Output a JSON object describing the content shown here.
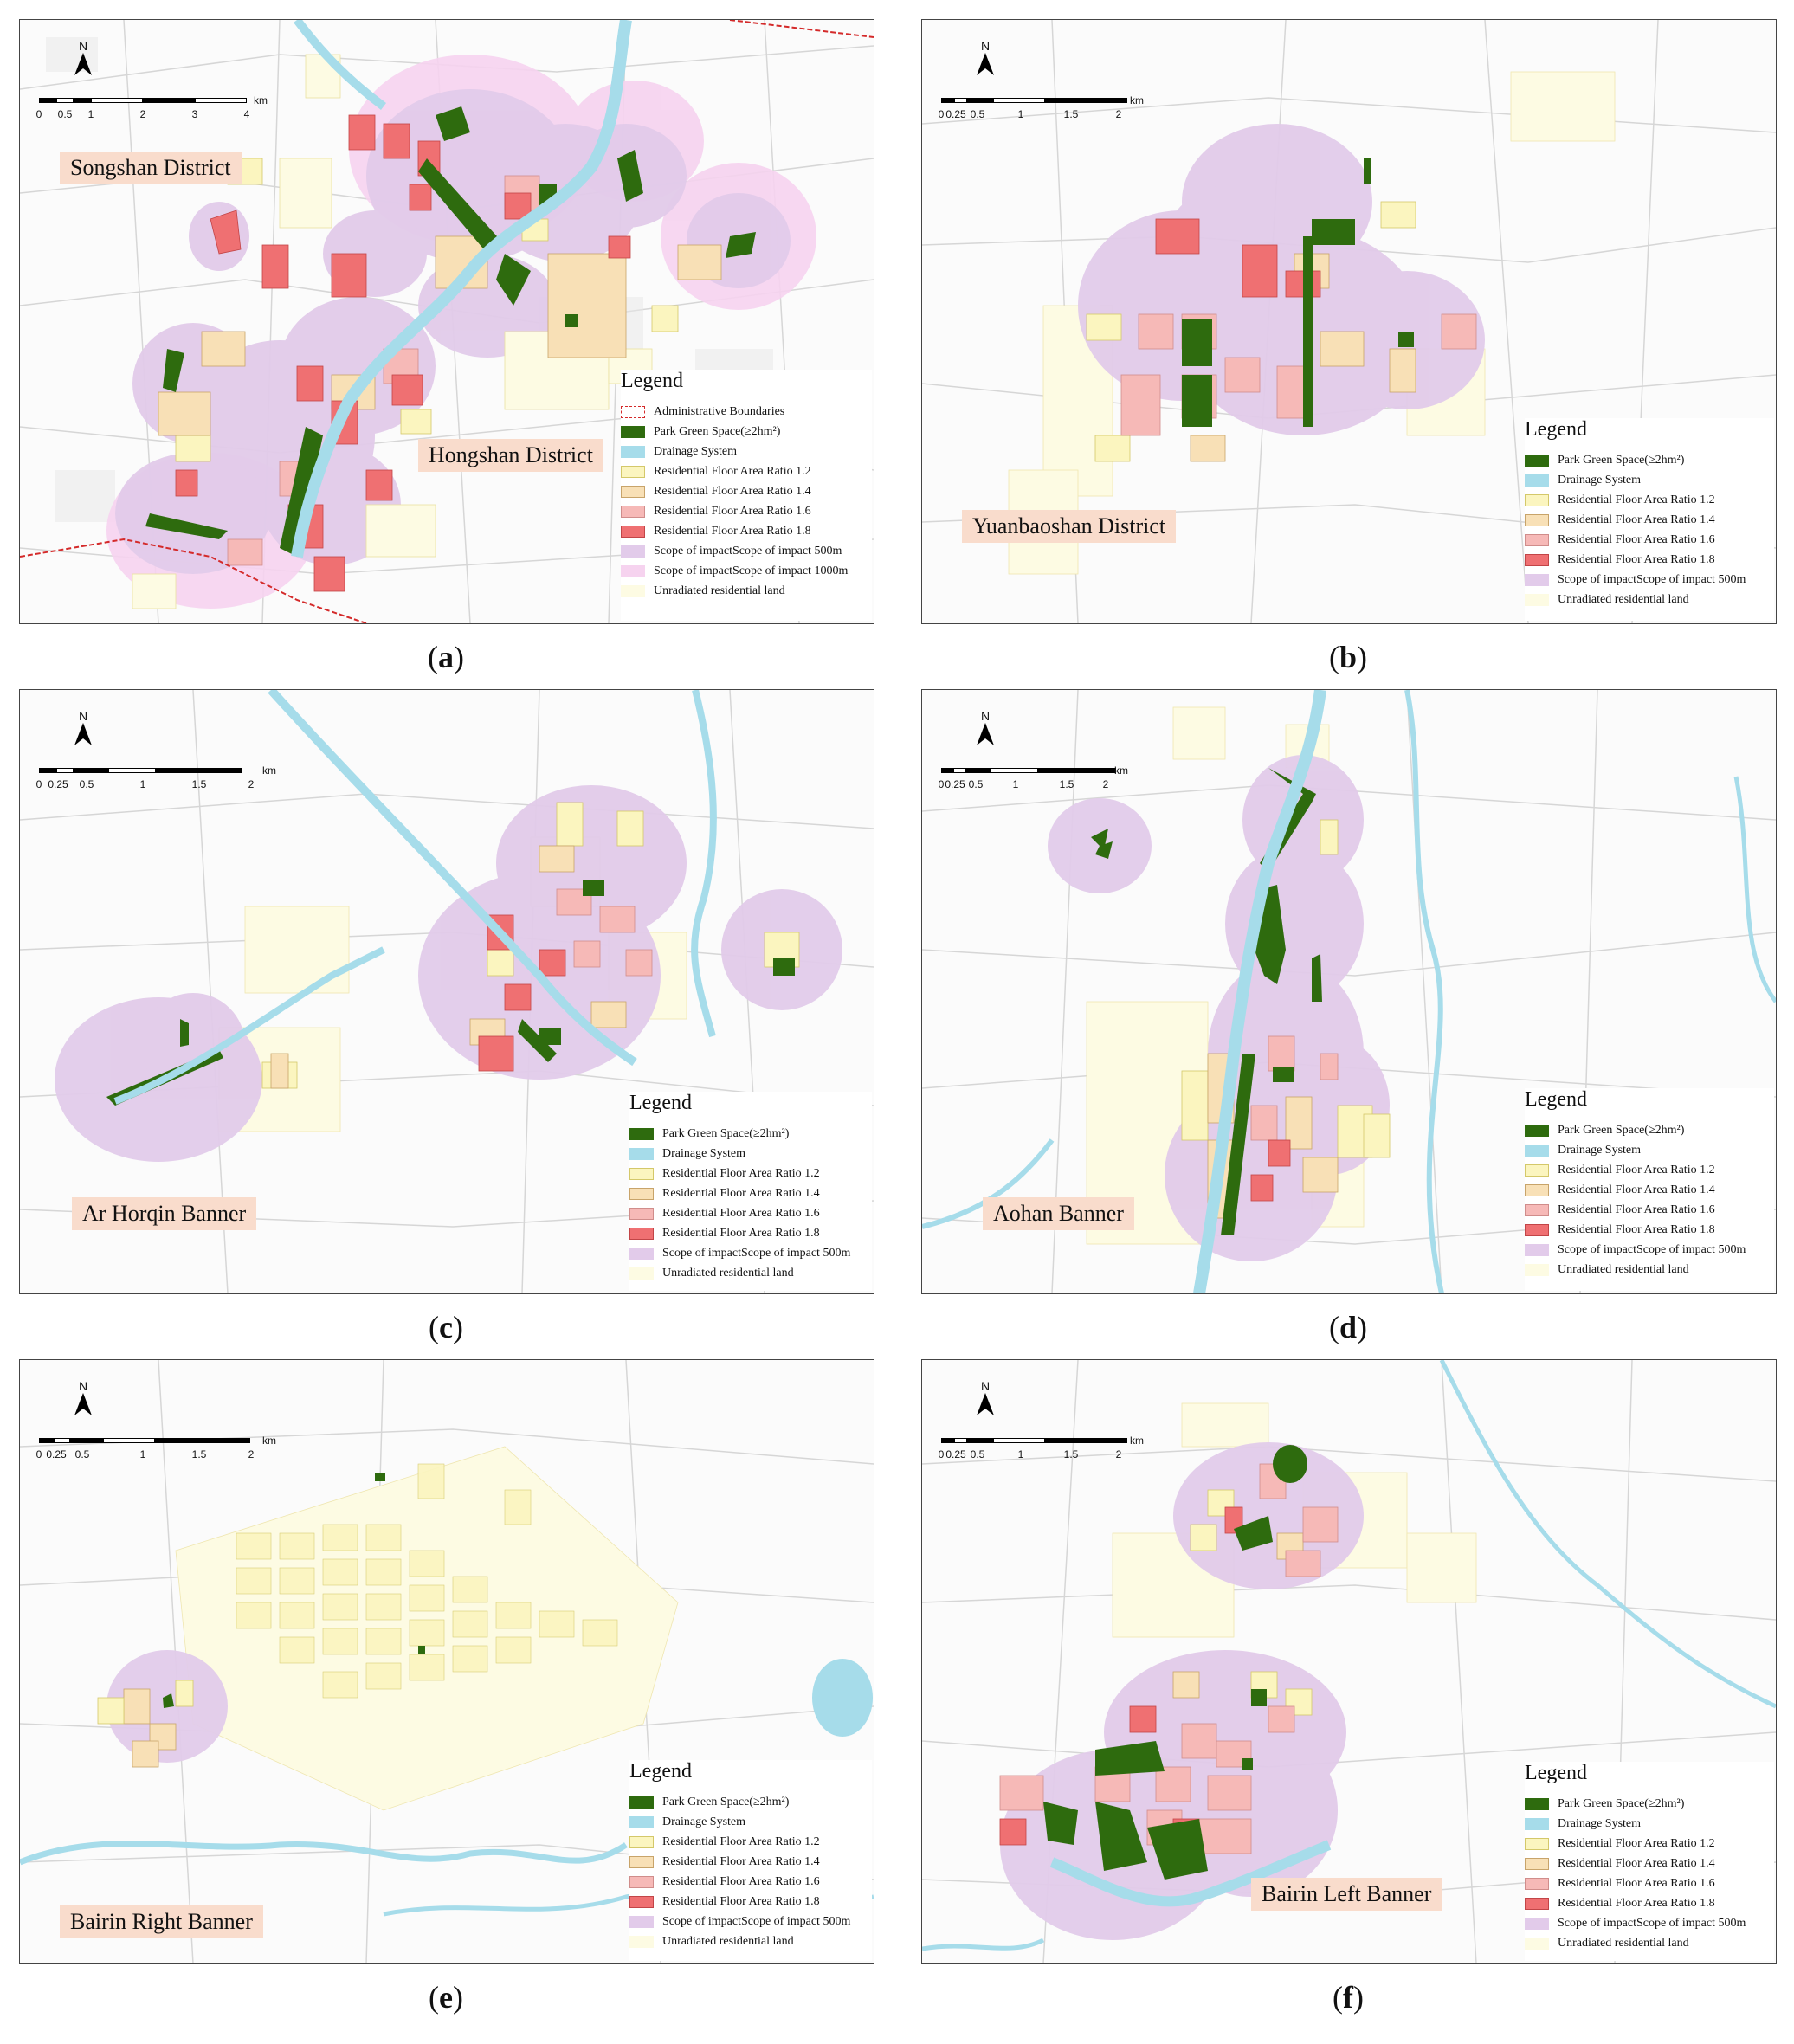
{
  "colors": {
    "park_green": "#2e6b0e",
    "drainage": "#a6dcea",
    "far_12": "#fbf5bf",
    "far_14": "#f8e0b6",
    "far_16": "#f6b9b7",
    "far_18": "#ef7072",
    "impact_500": "#e2cbea",
    "impact_1000": "#f6d3ef",
    "unradiated": "#fdfbe3",
    "admin_boundary": "#d42a2a",
    "district_label_bg": "#f9dccc"
  },
  "north_label": "N",
  "legend_items": {
    "admin": "Administrative Boundaries",
    "park": "Park Green Space(≥2hm²)",
    "drain": "Drainage System",
    "far12": "Residential Floor Area Ratio 1.2",
    "far14": "Residential Floor Area Ratio 1.4",
    "far16": "Residential Floor Area Ratio 1.6",
    "far18": "Residential Floor Area Ratio 1.8",
    "imp500": "Scope of impactScope of impact 500m",
    "imp1000": "Scope of impactScope of impact 1000m",
    "unrad": "Unradiated residential land"
  },
  "panels": {
    "a": {
      "caption_open": "(",
      "caption_letter": "a",
      "caption_close": ")",
      "legend_title": "Legend",
      "district_1": "Songshan District",
      "district_2": "Hongshan District",
      "scale_unit": "km",
      "scale_ticks": [
        "0",
        "0.5",
        "1",
        "2",
        "3",
        "4"
      ]
    },
    "b": {
      "caption_open": "(",
      "caption_letter": "b",
      "caption_close": ")",
      "legend_title": "Legend",
      "district_1": "Yuanbaoshan District",
      "scale_unit": "km",
      "scale_ticks": [
        "0",
        "0.25",
        "0.5",
        "1",
        "1.5",
        "2"
      ]
    },
    "c": {
      "caption_open": "(",
      "caption_letter": "c",
      "caption_close": ")",
      "legend_title": "Legend",
      "district_1": "Ar Horqin Banner",
      "scale_unit": "km",
      "scale_ticks": [
        "0",
        "0.25",
        "0.5",
        "1",
        "1.5",
        "2"
      ]
    },
    "d": {
      "caption_open": "(",
      "caption_letter": "d",
      "caption_close": ")",
      "legend_title": "Legend",
      "district_1": "Aohan Banner",
      "scale_unit": "km",
      "scale_ticks": [
        "0",
        "0.25",
        "0.5",
        "1",
        "1.5",
        "2"
      ]
    },
    "e": {
      "caption_open": "(",
      "caption_letter": "e",
      "caption_close": ")",
      "legend_title": "Legend",
      "district_1": "Bairin Right Banner",
      "scale_unit": "km",
      "scale_ticks": [
        "0",
        "0.25",
        "0.5",
        "1",
        "1.5",
        "2"
      ]
    },
    "f": {
      "caption_open": "(",
      "caption_letter": "f",
      "caption_close": ")",
      "legend_title": "Legend",
      "district_1": "Bairin Left Banner",
      "scale_unit": "km",
      "scale_ticks": [
        "0",
        "0.25",
        "0.5",
        "1",
        "1.5",
        "2"
      ]
    }
  }
}
